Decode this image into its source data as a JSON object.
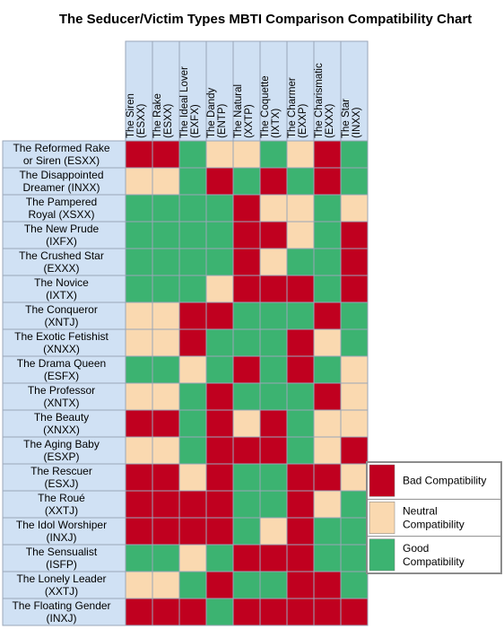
{
  "title": "The Seducer/Victim Types MBTI Comparison Compatibility Chart",
  "chart_data": {
    "type": "heatmap",
    "title": "The Seducer/Victim Types MBTI Comparison Compatibility Chart",
    "columns": [
      [
        "The Siren",
        "(ESXX)"
      ],
      [
        "The Rake",
        "(ESXX)"
      ],
      [
        "The Ideal Lover",
        "(EXFX)"
      ],
      [
        "The Dandy",
        "(ENTP)"
      ],
      [
        "The Natural",
        "(XXTP)"
      ],
      [
        "The Coquette",
        "(IXTX)"
      ],
      [
        "The Charmer",
        "(EXXP)"
      ],
      [
        "The Charismatic",
        "(EXXX)"
      ],
      [
        "The Star",
        "(INXX)"
      ]
    ],
    "rows": [
      [
        "The Reformed Rake",
        "or Siren (ESXX)"
      ],
      [
        "The Disappointed",
        "Dreamer (INXX)"
      ],
      [
        "The Pampered",
        "Royal (XSXX)"
      ],
      [
        "The New Prude",
        "(IXFX)"
      ],
      [
        "The Crushed Star",
        "(EXXX)"
      ],
      [
        "The Novice",
        "(IXTX)"
      ],
      [
        "The Conqueror",
        "(XNTJ)"
      ],
      [
        "The Exotic Fetishist",
        "(XNXX)"
      ],
      [
        "The Drama Queen",
        "(ESFX)"
      ],
      [
        "The Professor",
        "(XNTX)"
      ],
      [
        "The Beauty",
        "(XNXX)"
      ],
      [
        "The Aging Baby",
        "(ESXP)"
      ],
      [
        "The Rescuer",
        "(ESXJ)"
      ],
      [
        "The Roué",
        "(XXTJ)"
      ],
      [
        "The Idol Worshiper",
        "(INXJ)"
      ],
      [
        "The Sensualist",
        "(ISFP)"
      ],
      [
        "The Lonely Leader",
        "(XXTJ)"
      ],
      [
        "The Floating Gender",
        "(INXJ)"
      ]
    ],
    "values": [
      [
        "bad",
        "bad",
        "good",
        "neutral",
        "neutral",
        "good",
        "neutral",
        "bad",
        "good"
      ],
      [
        "neutral",
        "neutral",
        "good",
        "bad",
        "good",
        "bad",
        "good",
        "bad",
        "good"
      ],
      [
        "good",
        "good",
        "good",
        "good",
        "bad",
        "neutral",
        "neutral",
        "good",
        "neutral"
      ],
      [
        "good",
        "good",
        "good",
        "good",
        "bad",
        "bad",
        "neutral",
        "good",
        "bad"
      ],
      [
        "good",
        "good",
        "good",
        "good",
        "bad",
        "neutral",
        "good",
        "good",
        "bad"
      ],
      [
        "good",
        "good",
        "good",
        "neutral",
        "bad",
        "bad",
        "bad",
        "good",
        "bad"
      ],
      [
        "neutral",
        "neutral",
        "bad",
        "bad",
        "good",
        "good",
        "good",
        "bad",
        "good"
      ],
      [
        "neutral",
        "neutral",
        "bad",
        "good",
        "good",
        "good",
        "bad",
        "neutral",
        "good"
      ],
      [
        "good",
        "good",
        "neutral",
        "good",
        "bad",
        "good",
        "bad",
        "good",
        "neutral"
      ],
      [
        "neutral",
        "neutral",
        "good",
        "bad",
        "good",
        "good",
        "good",
        "bad",
        "neutral"
      ],
      [
        "bad",
        "bad",
        "good",
        "bad",
        "neutral",
        "bad",
        "good",
        "neutral",
        "neutral"
      ],
      [
        "neutral",
        "neutral",
        "good",
        "bad",
        "bad",
        "bad",
        "good",
        "neutral",
        "bad"
      ],
      [
        "bad",
        "bad",
        "neutral",
        "bad",
        "good",
        "good",
        "bad",
        "bad",
        "neutral"
      ],
      [
        "bad",
        "bad",
        "bad",
        "bad",
        "good",
        "good",
        "bad",
        "neutral",
        "good"
      ],
      [
        "bad",
        "bad",
        "bad",
        "bad",
        "good",
        "neutral",
        "bad",
        "good",
        "good"
      ],
      [
        "good",
        "good",
        "neutral",
        "good",
        "bad",
        "bad",
        "bad",
        "good",
        "good"
      ],
      [
        "neutral",
        "neutral",
        "good",
        "bad",
        "good",
        "good",
        "bad",
        "bad",
        "good"
      ],
      [
        "bad",
        "bad",
        "bad",
        "good",
        "bad",
        "bad",
        "bad",
        "bad",
        "bad"
      ]
    ],
    "legend": {
      "placement": "right",
      "items": [
        {
          "key": "bad",
          "label": [
            "Bad Compatibility"
          ],
          "color": "#c0001f"
        },
        {
          "key": "neutral",
          "label": [
            "Neutral",
            "Compatibility"
          ],
          "color": "#fad9b0"
        },
        {
          "key": "good",
          "label": [
            "Good",
            "Compatibility"
          ],
          "color": "#3cb371"
        }
      ]
    },
    "colors": {
      "column_header_bg": "#cfe0f3",
      "row_header_bg": "#d0e1f4",
      "grid_line": "#9aa6b8",
      "legend_border": "#8c8c8c"
    }
  }
}
